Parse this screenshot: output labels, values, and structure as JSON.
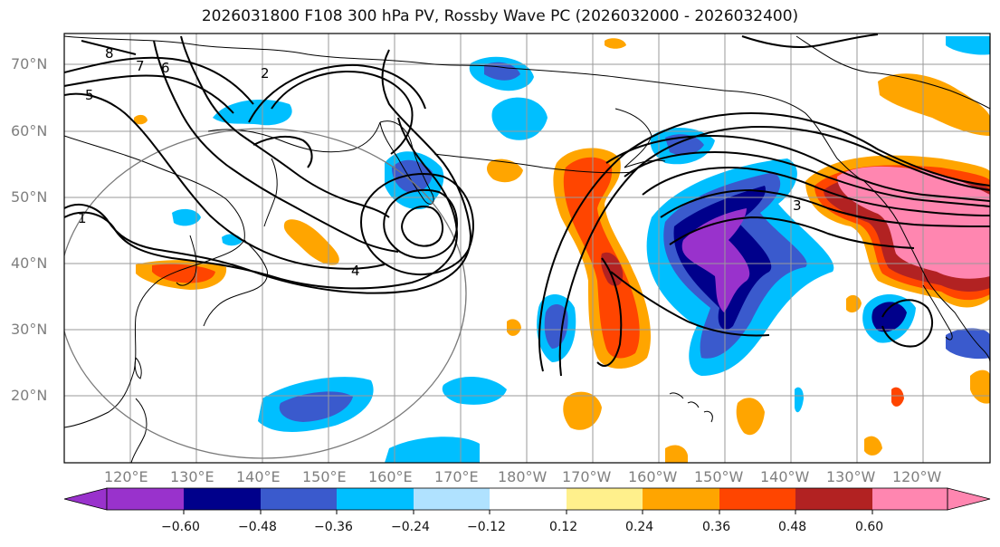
{
  "title": "2026031800 F108 300 hPa PV, Rossby Wave PC (2026032000 - 2026032400)",
  "lat_labels": [
    "70°N",
    "60°N",
    "50°N",
    "40°N",
    "30°N",
    "20°N"
  ],
  "lon_labels": [
    "120°E",
    "130°E",
    "140°E",
    "150°E",
    "160°E",
    "170°E",
    "180°W",
    "170°W",
    "160°W",
    "150°W",
    "140°W",
    "130°W",
    "120°W"
  ],
  "colorbar": {
    "ticks": [
      "−0.60",
      "−0.48",
      "−0.36",
      "−0.24",
      "−0.12",
      "0.12",
      "0.24",
      "0.36",
      "0.48",
      "0.60"
    ],
    "colors": [
      "#9932cc",
      "#00008b",
      "#3a5acd",
      "#00bfff",
      "#b0e2ff",
      "#ffffff",
      "#fff08c",
      "#ffa500",
      "#ff4500",
      "#b22222",
      "#ff86b0"
    ]
  },
  "contour_labels": [
    "8",
    "7",
    "6",
    "5",
    "4",
    "3",
    "2",
    "1"
  ],
  "colors": {
    "pc_neg_1": "#9932cc",
    "pc_neg_2": "#00008b",
    "pc_neg_3": "#3a5acd",
    "pc_neg_4": "#00bfff",
    "pc_neg_5": "#b0e2ff",
    "pc_pos_1": "#fff08c",
    "pc_pos_2": "#ffa500",
    "pc_pos_3": "#ff4500",
    "pc_pos_4": "#b22222",
    "pc_pos_5": "#ff86b0"
  }
}
